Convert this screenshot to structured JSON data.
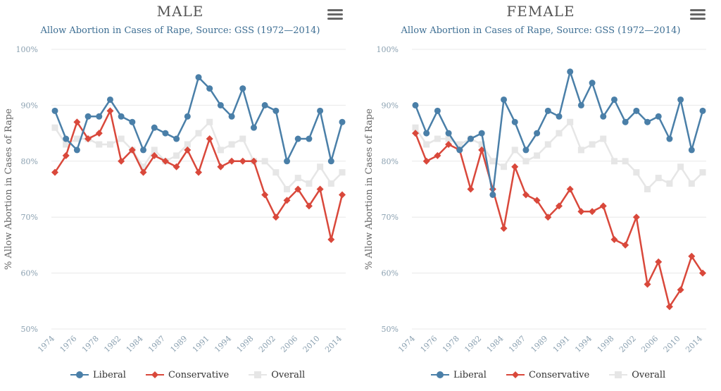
{
  "colors": {
    "liberal": "#4a7fa8",
    "conservative": "#d9483b",
    "overall": "#e6e6e6",
    "axis_text": "#8aa0b0",
    "grid": "#e8e8e8"
  },
  "icons": {
    "menu": "hamburger-menu-icon",
    "liberal": "circle-marker-icon",
    "conservative": "diamond-marker-icon",
    "overall": "square-marker-icon"
  },
  "chart_data": [
    {
      "type": "line",
      "title": "MALE",
      "subtitle": "Allow Abortion in Cases of Rape, Source: GSS (1972—2014)",
      "ylabel": "% Allow Abortion in Cases of Rape",
      "xlabel": "",
      "ylim": [
        50,
        100
      ],
      "yticks": [
        "50%",
        "60%",
        "70%",
        "80%",
        "90%",
        "100%"
      ],
      "grid": true,
      "legend": "bottom",
      "categories": [
        "1974",
        "1975",
        "1976",
        "1977",
        "1978",
        "1980",
        "1982",
        "1983",
        "1984",
        "1985",
        "1987",
        "1988",
        "1989",
        "1990",
        "1991",
        "1993",
        "1994",
        "1996",
        "1998",
        "2000",
        "2002",
        "2004",
        "2006",
        "2008",
        "2010",
        "2012",
        "2014"
      ],
      "xtick_labels": [
        "1974",
        "1976",
        "1978",
        "1982",
        "1984",
        "1987",
        "1989",
        "1991",
        "1994",
        "1998",
        "2002",
        "2006",
        "2010",
        "2014"
      ],
      "series": [
        {
          "name": "Liberal",
          "values": [
            89,
            84,
            82,
            88,
            88,
            91,
            88,
            87,
            82,
            86,
            85,
            84,
            88,
            95,
            93,
            90,
            88,
            93,
            86,
            90,
            89,
            80,
            84,
            84,
            89,
            80,
            87
          ]
        },
        {
          "name": "Conservative",
          "values": [
            78,
            81,
            87,
            84,
            85,
            89,
            80,
            82,
            78,
            81,
            80,
            79,
            82,
            78,
            84,
            79,
            80,
            80,
            80,
            74,
            70,
            73,
            75,
            72,
            75,
            66,
            74
          ]
        },
        {
          "name": "Overall",
          "values": [
            86,
            83,
            84,
            84,
            83,
            83,
            84,
            82,
            79,
            82,
            80,
            81,
            83,
            85,
            87,
            82,
            83,
            84,
            80,
            80,
            78,
            75,
            77,
            76,
            79,
            76,
            78
          ]
        }
      ]
    },
    {
      "type": "line",
      "title": "FEMALE",
      "subtitle": "Allow Abortion in Cases of Rape, Source: GSS (1972—2014)",
      "ylabel": "% Allow Abortion in Cases of Rape",
      "xlabel": "",
      "ylim": [
        50,
        100
      ],
      "yticks": [
        "50%",
        "60%",
        "70%",
        "80%",
        "90%",
        "100%"
      ],
      "grid": true,
      "legend": "bottom",
      "categories": [
        "1974",
        "1975",
        "1976",
        "1977",
        "1978",
        "1980",
        "1982",
        "1983",
        "1984",
        "1985",
        "1987",
        "1988",
        "1989",
        "1990",
        "1991",
        "1993",
        "1994",
        "1996",
        "1998",
        "2000",
        "2002",
        "2004",
        "2006",
        "2008",
        "2010",
        "2012",
        "2014"
      ],
      "xtick_labels": [
        "1974",
        "1976",
        "1978",
        "1982",
        "1984",
        "1987",
        "1989",
        "1991",
        "1994",
        "1998",
        "2002",
        "2006",
        "2010",
        "2014"
      ],
      "series": [
        {
          "name": "Liberal",
          "values": [
            90,
            85,
            89,
            85,
            82,
            84,
            85,
            74,
            91,
            87,
            82,
            85,
            89,
            88,
            96,
            90,
            94,
            88,
            91,
            87,
            89,
            87,
            88,
            84,
            91,
            82,
            89
          ]
        },
        {
          "name": "Conservative",
          "values": [
            85,
            80,
            81,
            83,
            82,
            75,
            82,
            75,
            68,
            79,
            74,
            73,
            70,
            72,
            75,
            71,
            71,
            72,
            66,
            65,
            70,
            58,
            62,
            54,
            57,
            63,
            60
          ]
        },
        {
          "name": "Overall",
          "values": [
            86,
            83,
            84,
            84,
            83,
            84,
            83,
            80,
            79,
            82,
            80,
            81,
            83,
            85,
            87,
            82,
            83,
            84,
            80,
            80,
            78,
            75,
            77,
            76,
            79,
            76,
            78
          ]
        }
      ]
    }
  ]
}
